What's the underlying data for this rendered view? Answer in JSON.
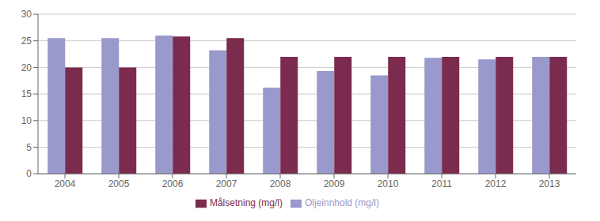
{
  "chart_data": {
    "type": "bar",
    "categories": [
      "2004",
      "2005",
      "2006",
      "2007",
      "2008",
      "2009",
      "2010",
      "2011",
      "2012",
      "2013"
    ],
    "series": [
      {
        "name": "Oljeinnhold (mg/l)",
        "color": "#9999cc",
        "values": [
          25.5,
          25.5,
          26.0,
          23.2,
          16.2,
          19.3,
          18.5,
          21.8,
          21.5,
          22.0
        ]
      },
      {
        "name": "Målsetning (mg/l)",
        "color": "#7b2b4e",
        "values": [
          20.0,
          20.0,
          25.8,
          25.5,
          22.0,
          22.0,
          22.0,
          22.0,
          22.0,
          22.0
        ]
      }
    ],
    "ylim": [
      0,
      30
    ],
    "yticks": [
      0,
      5,
      10,
      15,
      20,
      25,
      30
    ],
    "grid": true,
    "legend": "bottom"
  }
}
